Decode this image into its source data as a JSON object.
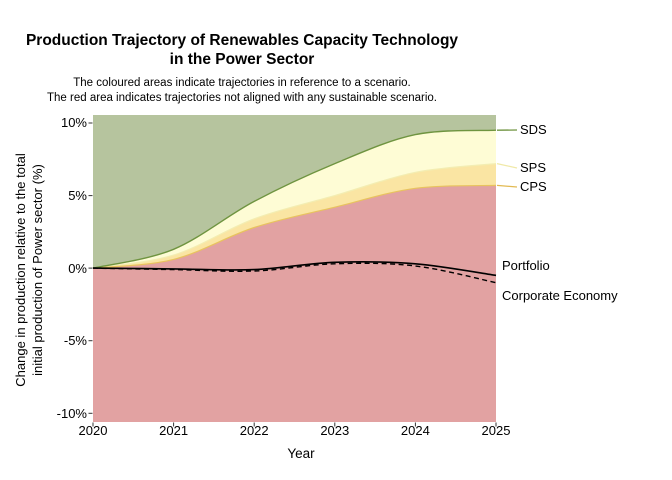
{
  "header": {
    "title_line1": "Production Trajectory of Renewables Capacity Technology",
    "title_line2": "in the Power Sector",
    "subtitle_line1": "The coloured areas indicate trajectories in reference to a scenario.",
    "subtitle_line2": "The red area indicates trajectories not aligned with any sustainable scenario."
  },
  "axes": {
    "x_label": "Year",
    "y_label_line1": "Change in production relative to the total",
    "y_label_line2": "initial production of Power sector (%)",
    "x_ticks": [
      "2020",
      "2021",
      "2022",
      "2023",
      "2024",
      "2025"
    ],
    "y_ticks": [
      "10%",
      "5%",
      "0%",
      "-5%",
      "-10%"
    ]
  },
  "labels": {
    "sds": "SDS",
    "sps": "SPS",
    "cps": "CPS",
    "portfolio": "Portfolio",
    "corporate_economy": "Corporate Economy"
  },
  "colors": {
    "sds_area": "#b6c49e",
    "sps_area": "#fefcd5",
    "cps_area": "#fae5a3",
    "red_area": "#e2a2a2",
    "sds_line": "#6f9440",
    "sps_boundary": "#f3edb2",
    "cps_boundary": "#e8c35e",
    "sps_leader": "#f0e9a8",
    "cps_leader": "#e2ba52",
    "data_line": "#000000",
    "tick": "#333333",
    "background": "#ffffff"
  },
  "chart_data": {
    "type": "area",
    "title": "Production Trajectory of Renewables Capacity Technology in the Power Sector",
    "subtitle": "The coloured areas indicate trajectories in reference to a scenario. The red area indicates trajectories not aligned with any sustainable scenario.",
    "xlabel": "Year",
    "ylabel": "Change in production relative to the total initial production of Power sector (%)",
    "x": [
      2020,
      2021,
      2022,
      2023,
      2024,
      2025
    ],
    "xlim": [
      2020,
      2025
    ],
    "ylim": [
      -10.6,
      10.55
    ],
    "y_tick_values": [
      10,
      5,
      0,
      -5,
      -10
    ],
    "grid": false,
    "legend_position": "right-annotations",
    "series": [
      {
        "name": "SDS",
        "kind": "scenario-boundary",
        "description": "upper edge of yellow band / lower edge of green area",
        "values": [
          0,
          1.3,
          4.6,
          7.2,
          9.2,
          9.5
        ]
      },
      {
        "name": "SPS",
        "kind": "scenario-boundary",
        "description": "boundary between pale-yellow and gold bands",
        "values": [
          0,
          0.9,
          3.4,
          5.0,
          6.6,
          7.2
        ]
      },
      {
        "name": "CPS",
        "kind": "scenario-boundary",
        "description": "boundary between gold band and red area",
        "values": [
          0,
          0.6,
          2.8,
          4.2,
          5.5,
          5.7
        ]
      },
      {
        "name": "Portfolio",
        "kind": "line",
        "style": "solid",
        "values": [
          0,
          -0.05,
          -0.1,
          0.4,
          0.3,
          -0.5
        ]
      },
      {
        "name": "Corporate Economy",
        "kind": "line",
        "style": "dashed",
        "values": [
          0,
          -0.1,
          -0.2,
          0.3,
          0.15,
          -1.0
        ]
      }
    ],
    "areas": [
      {
        "name": "SDS region",
        "fill": "#b6c49e",
        "between": [
          "SDS",
          "panel-top"
        ]
      },
      {
        "name": "SPS region",
        "fill": "#fefcd5",
        "between": [
          "SPS",
          "SDS"
        ]
      },
      {
        "name": "CPS region",
        "fill": "#fae5a3",
        "between": [
          "CPS",
          "SPS"
        ]
      },
      {
        "name": "Not aligned region",
        "fill": "#e2a2a2",
        "between": [
          "panel-bottom",
          "CPS"
        ]
      }
    ]
  }
}
